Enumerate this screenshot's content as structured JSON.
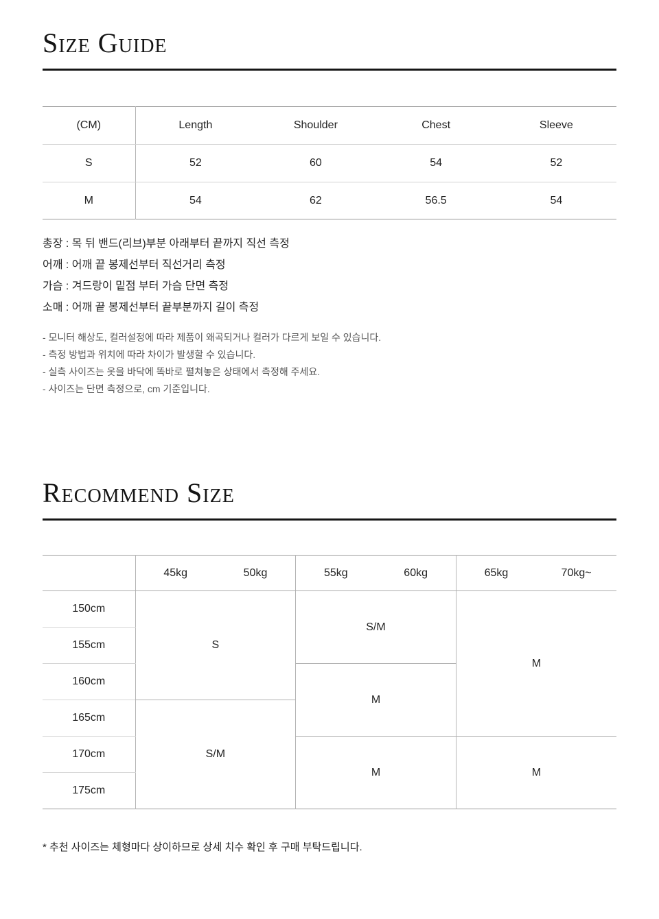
{
  "size_guide": {
    "title": "Size Guide",
    "table": {
      "unit_label": "(CM)",
      "columns": [
        "Length",
        "Shoulder",
        "Chest",
        "Sleeve"
      ],
      "rows": [
        {
          "size": "S",
          "values": [
            "52",
            "60",
            "54",
            "52"
          ]
        },
        {
          "size": "M",
          "values": [
            "54",
            "62",
            "56.5",
            "54"
          ]
        }
      ]
    },
    "measurements": [
      "총장 : 목 뒤 밴드(리브)부분 아래부터 끝까지 직선 측정",
      "어깨 : 어깨 끝 봉제선부터 직선거리 측정",
      "가슴 : 겨드랑이 밑점 부터 가슴 단면 측정",
      "소매 : 어깨 끝 봉제선부터 끝부분까지 길이 측정"
    ],
    "notes": [
      "- 모니터 해상도, 컬러설정에 따라 제품이 왜곡되거나 컬러가 다르게 보일 수 있습니다.",
      "- 측정 방법과 위치에 따라 차이가 발생할 수 있습니다.",
      "- 실측 사이즈는 옷을 바닥에 똑바로 펼쳐놓은 상태에서 측정해 주세요.",
      "- 사이즈는 단면 측정으로, cm 기준입니다."
    ]
  },
  "recommend": {
    "title": "Recommend Size",
    "table": {
      "weights": [
        "45kg",
        "50kg",
        "55kg",
        "60kg",
        "65kg",
        "70kg~"
      ],
      "heights": [
        "150cm",
        "155cm",
        "160cm",
        "165cm",
        "170cm",
        "175cm"
      ],
      "cells": {
        "w45_50kg": [
          "S",
          "S/M"
        ],
        "w55_60kg": [
          "S/M",
          "M",
          "M"
        ],
        "w65_70kg": [
          "M",
          "M"
        ]
      }
    },
    "footnote": "* 추천 사이즈는 체형마다 상이하므로 상세 치수 확인 후 구매 부탁드립니다."
  }
}
